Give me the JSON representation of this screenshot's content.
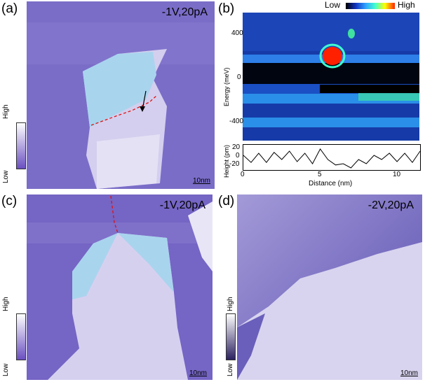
{
  "panels": {
    "a": {
      "label": "(a)",
      "condition": "-1V,20pA",
      "scalebar": "10nm",
      "colorbar_high": "High",
      "colorbar_low": "Low"
    },
    "b": {
      "label": "(b)",
      "cbar_low": "Low",
      "cbar_high": "High"
    },
    "c": {
      "label": "(c)",
      "condition": "-1V,20pA",
      "scalebar": "10nm",
      "colorbar_high": "High",
      "colorbar_low": "Low"
    },
    "d": {
      "label": "(d)",
      "condition": "-2V,20pA",
      "scalebar": "10nm",
      "colorbar_high": "High",
      "colorbar_low": "Low"
    }
  },
  "chart_data": [
    {
      "type": "heatmap",
      "ylabel": "Energy (meV)",
      "yticks": [
        "400",
        "0",
        "-400"
      ],
      "ylim": [
        -560,
        560
      ],
      "xlim": [
        0,
        11.5
      ],
      "colorscale": [
        "#000000",
        "#1030c0",
        "#30a0ff",
        "#40ffd0",
        "#ffff00",
        "#ff2000"
      ]
    },
    {
      "type": "line",
      "xlabel": "Distance (nm)",
      "ylabel": "Height (pm)",
      "xticks": [
        "0",
        "5",
        "10"
      ],
      "yticks": [
        "20",
        "0",
        "-20"
      ],
      "xlim": [
        0,
        11.5
      ],
      "ylim": [
        -30,
        30
      ],
      "x": [
        0,
        0.5,
        1,
        1.5,
        2,
        2.5,
        3,
        3.5,
        4,
        4.5,
        5,
        5.5,
        6,
        6.5,
        7,
        7.5,
        8,
        8.5,
        9,
        9.5,
        10,
        10.5,
        11,
        11.5
      ],
      "y": [
        5,
        -12,
        10,
        -12,
        12,
        -5,
        15,
        -10,
        10,
        -15,
        20,
        -5,
        -18,
        -15,
        -25,
        -5,
        -15,
        5,
        -5,
        10,
        -10,
        10,
        -12,
        15
      ]
    }
  ]
}
